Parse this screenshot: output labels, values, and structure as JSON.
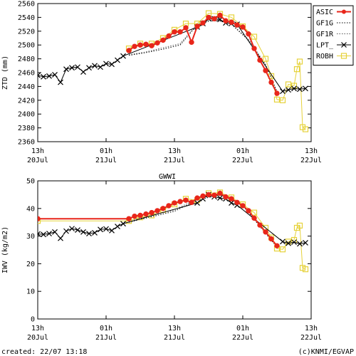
{
  "footer": {
    "created": "created: 22/07 13:18",
    "credit": "(c)KNMI/EGVAP"
  },
  "x_ticks": [
    {
      "t": 0,
      "top": "13h",
      "bottom": "20Jul"
    },
    {
      "t": 12,
      "top": "01h",
      "bottom": "21Jul"
    },
    {
      "t": 24,
      "top": "13h",
      "bottom": "21Jul"
    },
    {
      "t": 36,
      "top": "01h",
      "bottom": "22Jul"
    },
    {
      "t": 48,
      "top": "13h",
      "bottom": "22Jul"
    }
  ],
  "colors": {
    "ASIC": "#e8261a",
    "GF1G": "#000000",
    "GF1R": "#555555",
    "LPT_": "#000000",
    "ROBH": "#e6d23a"
  },
  "chart_data": [
    {
      "type": "line",
      "title": "",
      "xlabel": "",
      "ylabel": "ZTD (mm)",
      "xlim": [
        0,
        48
      ],
      "ylim": [
        2360,
        2560
      ],
      "yticks": [
        2360,
        2380,
        2400,
        2420,
        2440,
        2460,
        2480,
        2500,
        2520,
        2540,
        2560
      ],
      "legend": "top-right",
      "series": [
        {
          "name": "ASIC",
          "style": "filled-circle-line",
          "color": "#e8261a",
          "x": [
            16,
            17,
            18,
            19,
            20,
            21,
            22,
            23,
            24,
            25,
            26,
            27,
            28,
            29,
            30,
            31,
            32,
            33,
            34,
            35,
            36,
            37,
            38,
            39,
            40,
            41,
            42
          ],
          "y": [
            2492,
            2498,
            2500,
            2501,
            2499,
            2503,
            2507,
            2513,
            2519,
            2519,
            2525,
            2504,
            2527,
            2532,
            2540,
            2538,
            2543,
            2535,
            2533,
            2529,
            2526,
            2516,
            2495,
            2478,
            2463,
            2446,
            2430
          ]
        },
        {
          "name": "GF1G",
          "style": "dotted",
          "color": "#000000",
          "x": [
            16,
            19,
            22,
            25,
            28,
            31,
            34,
            37,
            40,
            42
          ],
          "y": [
            2485,
            2489,
            2494,
            2500,
            2529,
            2537,
            2530,
            2507,
            2471,
            2432
          ]
        },
        {
          "name": "GF1R",
          "style": "dotted",
          "color": "#555555",
          "x": [
            16,
            19,
            22,
            25,
            28,
            31,
            34,
            37,
            40,
            42
          ],
          "y": [
            2486,
            2490,
            2496,
            2502,
            2530,
            2538,
            2531,
            2508,
            2472,
            2433
          ]
        },
        {
          "name": "LPT_",
          "style": "cross-line",
          "color": "#000000",
          "x": [
            0,
            1,
            2,
            3,
            4,
            5,
            6,
            7,
            8,
            9,
            10,
            11,
            12,
            13,
            14,
            15,
            28,
            29,
            30,
            31,
            32,
            33,
            34,
            35,
            43,
            44,
            45,
            46,
            47
          ],
          "y": [
            2456,
            2454,
            2455,
            2457,
            2446,
            2465,
            2467,
            2468,
            2461,
            2467,
            2470,
            2468,
            2473,
            2472,
            2478,
            2484,
            2526,
            2531,
            2538,
            2538,
            2537,
            2532,
            2531,
            2530,
            2433,
            2435,
            2437,
            2436,
            2437
          ]
        },
        {
          "name": "ROBH",
          "style": "open-square-line",
          "color": "#e6d23a",
          "x": [
            16,
            18,
            20,
            22,
            24,
            26,
            28,
            30,
            32,
            34,
            36,
            38,
            40,
            41,
            42,
            43,
            44,
            45,
            45.5,
            46,
            46.5,
            47
          ],
          "y": [
            2495,
            2502,
            2502,
            2510,
            2522,
            2531,
            2531,
            2546,
            2545,
            2540,
            2527,
            2512,
            2480,
            2455,
            2421,
            2420,
            2443,
            2441,
            2465,
            2476,
            2381,
            2378
          ]
        }
      ]
    },
    {
      "type": "line",
      "title": "GWWI",
      "xlabel": "",
      "ylabel": "IWV (kg/m2)",
      "xlim": [
        0,
        48
      ],
      "ylim": [
        0,
        50
      ],
      "yticks": [
        0,
        10,
        20,
        30,
        40,
        50
      ],
      "series": [
        {
          "name": "ASIC",
          "style": "filled-circle-line",
          "color": "#e8261a",
          "x": [
            0,
            16,
            17,
            18,
            19,
            20,
            21,
            22,
            23,
            24,
            25,
            26,
            27,
            28,
            29,
            30,
            31,
            32,
            33,
            34,
            35,
            36,
            37,
            38,
            39,
            40,
            41,
            42
          ],
          "y": [
            36.3,
            36.3,
            37.2,
            37.5,
            38.0,
            38.5,
            39.2,
            40.0,
            41.0,
            42.0,
            42.5,
            43.0,
            42.2,
            43.8,
            44.5,
            45.0,
            44.8,
            45.5,
            44.2,
            43.5,
            42.2,
            41.0,
            39.2,
            36.5,
            34.0,
            31.5,
            29.0,
            26.5
          ]
        },
        {
          "name": "GF1G",
          "style": "dotted",
          "color": "#000000",
          "x": [
            16,
            20,
            24,
            28,
            32,
            36,
            40,
            42
          ],
          "y": [
            35.0,
            37.0,
            39.0,
            43.0,
            45.0,
            41.0,
            31.0,
            26.0
          ]
        },
        {
          "name": "GF1R",
          "style": "dotted",
          "color": "#555555",
          "x": [
            16,
            20,
            24,
            28,
            32,
            36,
            40,
            42
          ],
          "y": [
            35.5,
            37.5,
            39.5,
            43.5,
            45.5,
            41.5,
            31.5,
            26.5
          ]
        },
        {
          "name": "LPT_",
          "style": "cross-line",
          "color": "#000000",
          "x": [
            0,
            1,
            2,
            3,
            4,
            5,
            6,
            7,
            8,
            9,
            10,
            11,
            12,
            13,
            14,
            15,
            28,
            29,
            30,
            31,
            32,
            33,
            34,
            35,
            43,
            44,
            45,
            46,
            47
          ],
          "y": [
            30.8,
            30.6,
            30.9,
            31.5,
            29.2,
            31.8,
            32.7,
            32.2,
            31.5,
            30.9,
            31.2,
            32.4,
            32.6,
            32.0,
            33.5,
            34.5,
            42.0,
            43.5,
            45.0,
            44.2,
            43.8,
            43.5,
            42.0,
            41.2,
            28.0,
            27.4,
            27.8,
            27.2,
            27.6
          ]
        },
        {
          "name": "ROBH",
          "style": "open-square-line",
          "color": "#e6d23a",
          "x": [
            0,
            16,
            18,
            20,
            22,
            24,
            26,
            28,
            30,
            32,
            34,
            36,
            38,
            40,
            41,
            42,
            43,
            44,
            45,
            45.5,
            46,
            46.5,
            47
          ],
          "y": [
            35.5,
            35.5,
            36.8,
            37.5,
            39.5,
            41.5,
            43.5,
            43.0,
            45.5,
            45.8,
            44.0,
            41.5,
            38.5,
            33.0,
            29.5,
            25.5,
            25.2,
            28.0,
            28.6,
            33.0,
            33.8,
            18.5,
            18.0
          ]
        }
      ]
    }
  ]
}
